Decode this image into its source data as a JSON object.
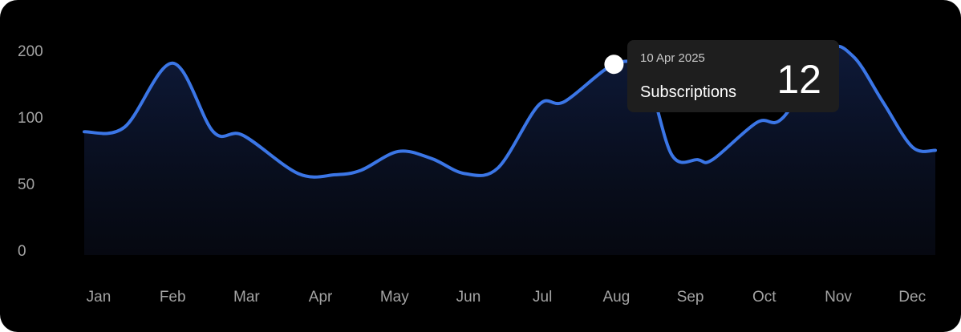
{
  "chart_data": {
    "type": "area",
    "categories": [
      "Jan",
      "Feb",
      "Mar",
      "Apr",
      "May",
      "Jun",
      "Jul",
      "Aug",
      "Sep",
      "Oct",
      "Nov",
      "Dec"
    ],
    "yticks": [
      "200",
      "100",
      "50",
      "0"
    ],
    "ylim": [
      0,
      200
    ],
    "grid": false,
    "series": [
      {
        "x": [
          0,
          0.35,
          1.0,
          1.55,
          1.95,
          2.7,
          3.2,
          3.55,
          4.05,
          4.5,
          4.95,
          5.4,
          5.95,
          6.3,
          7.0,
          7.4,
          7.75,
          8.1,
          8.3,
          8.9,
          9.25,
          9.85,
          10.2,
          10.6,
          11.0,
          11.35
        ],
        "y": [
          106,
          110,
          165,
          106,
          103,
          70,
          69,
          73,
          89,
          83,
          70,
          75,
          129,
          132,
          165,
          154,
          86,
          82,
          82,
          114,
          118,
          175,
          171,
          132,
          93,
          90
        ],
        "color": "#3b76e6"
      }
    ],
    "tooltip": {
      "date": "10 Apr 2025",
      "label": "Subscriptions",
      "value": "12",
      "point_category": "Aug",
      "point_y": 164
    }
  }
}
